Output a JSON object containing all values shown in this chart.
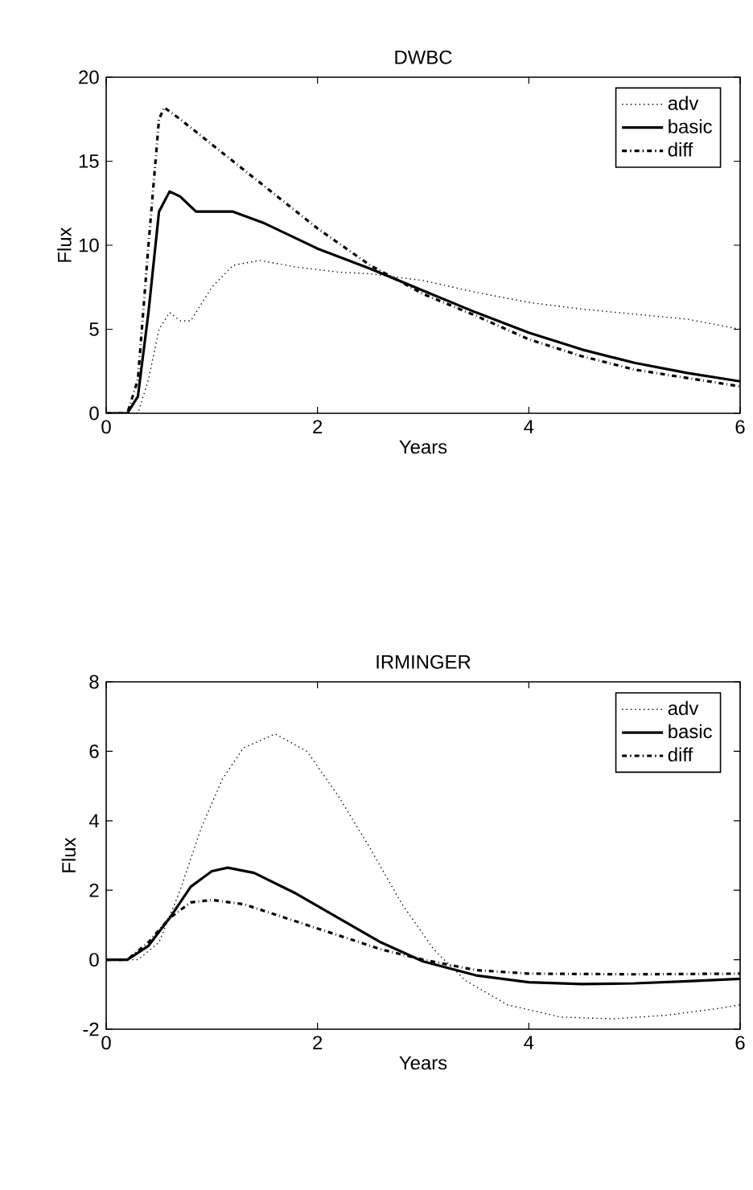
{
  "chart_data": [
    {
      "type": "line",
      "title": "DWBC",
      "xlabel": "Years",
      "ylabel": "Flux",
      "xlim": [
        0,
        6
      ],
      "ylim": [
        0,
        20
      ],
      "xticks": [
        0,
        2,
        4,
        6
      ],
      "yticks": [
        0,
        5,
        10,
        15,
        20
      ],
      "legend": "top right",
      "grid": false,
      "series": [
        {
          "name": "adv",
          "color": "#000000",
          "line_style": "dotted",
          "x": [
            0,
            0.3,
            0.4,
            0.5,
            0.6,
            0.7,
            0.8,
            1.0,
            1.2,
            1.45,
            1.8,
            2.2,
            2.5,
            3,
            3.5,
            4,
            4.5,
            5,
            5.5,
            6
          ],
          "values": [
            0,
            0,
            2,
            5,
            6,
            5.5,
            5.5,
            7.5,
            8.8,
            9.1,
            8.7,
            8.4,
            8.3,
            7.9,
            7.2,
            6.6,
            6.2,
            5.9,
            5.6,
            5.0
          ]
        },
        {
          "name": "basic",
          "color": "#000000",
          "line_style": "solid",
          "x": [
            0,
            0.2,
            0.3,
            0.4,
            0.5,
            0.6,
            0.7,
            0.85,
            1.0,
            1.2,
            1.5,
            2,
            2.5,
            3,
            3.5,
            4,
            4.5,
            5,
            5.5,
            6
          ],
          "values": [
            0,
            0,
            1,
            6,
            12,
            13.2,
            12.9,
            12,
            12,
            12,
            11.3,
            9.8,
            8.6,
            7.3,
            6,
            4.8,
            3.8,
            3,
            2.4,
            1.9
          ]
        },
        {
          "name": "diff",
          "color": "#000000",
          "line_style": "dashdot",
          "x": [
            0,
            0.2,
            0.3,
            0.4,
            0.5,
            0.55,
            0.7,
            1.0,
            1.5,
            2,
            2.5,
            3,
            3.5,
            4,
            4.5,
            5,
            5.5,
            6
          ],
          "values": [
            0,
            0,
            2,
            10,
            17.5,
            18.2,
            17.5,
            16,
            13.5,
            11,
            8.8,
            7.1,
            5.8,
            4.4,
            3.4,
            2.6,
            2.1,
            1.6
          ]
        }
      ]
    },
    {
      "type": "line",
      "title": "IRMINGER",
      "xlabel": "Years",
      "ylabel": "Flux",
      "xlim": [
        0,
        6
      ],
      "ylim": [
        -2,
        8
      ],
      "xticks": [
        0,
        2,
        4,
        6
      ],
      "yticks": [
        -2,
        0,
        2,
        4,
        6,
        8
      ],
      "legend": "top right",
      "grid": false,
      "series": [
        {
          "name": "adv",
          "color": "#000000",
          "line_style": "dotted",
          "x": [
            0,
            0.3,
            0.5,
            0.7,
            0.9,
            1.1,
            1.3,
            1.6,
            1.9,
            2.2,
            2.5,
            2.8,
            3.1,
            3.4,
            3.8,
            4.3,
            4.8,
            5.3,
            5.8,
            6
          ],
          "values": [
            0,
            0,
            0.5,
            2,
            3.8,
            5.2,
            6.1,
            6.5,
            6.0,
            4.7,
            3.2,
            1.6,
            0.3,
            -0.6,
            -1.3,
            -1.65,
            -1.7,
            -1.6,
            -1.4,
            -1.3
          ]
        },
        {
          "name": "basic",
          "color": "#000000",
          "line_style": "solid",
          "x": [
            0,
            0.2,
            0.4,
            0.6,
            0.8,
            1.0,
            1.15,
            1.4,
            1.8,
            2.2,
            2.6,
            3,
            3.5,
            4,
            4.5,
            5,
            5.5,
            6
          ],
          "values": [
            0,
            0,
            0.4,
            1.2,
            2.1,
            2.55,
            2.65,
            2.5,
            1.9,
            1.2,
            0.5,
            -0.05,
            -0.45,
            -0.65,
            -0.7,
            -0.68,
            -0.62,
            -0.55
          ]
        },
        {
          "name": "diff",
          "color": "#000000",
          "line_style": "dashdot",
          "x": [
            0,
            0.2,
            0.4,
            0.6,
            0.8,
            1.0,
            1.3,
            1.8,
            2.2,
            2.6,
            3,
            3.5,
            4,
            5,
            6
          ],
          "values": [
            0,
            0,
            0.5,
            1.2,
            1.65,
            1.72,
            1.6,
            1.1,
            0.7,
            0.3,
            0,
            -0.3,
            -0.4,
            -0.42,
            -0.4
          ]
        }
      ]
    }
  ]
}
